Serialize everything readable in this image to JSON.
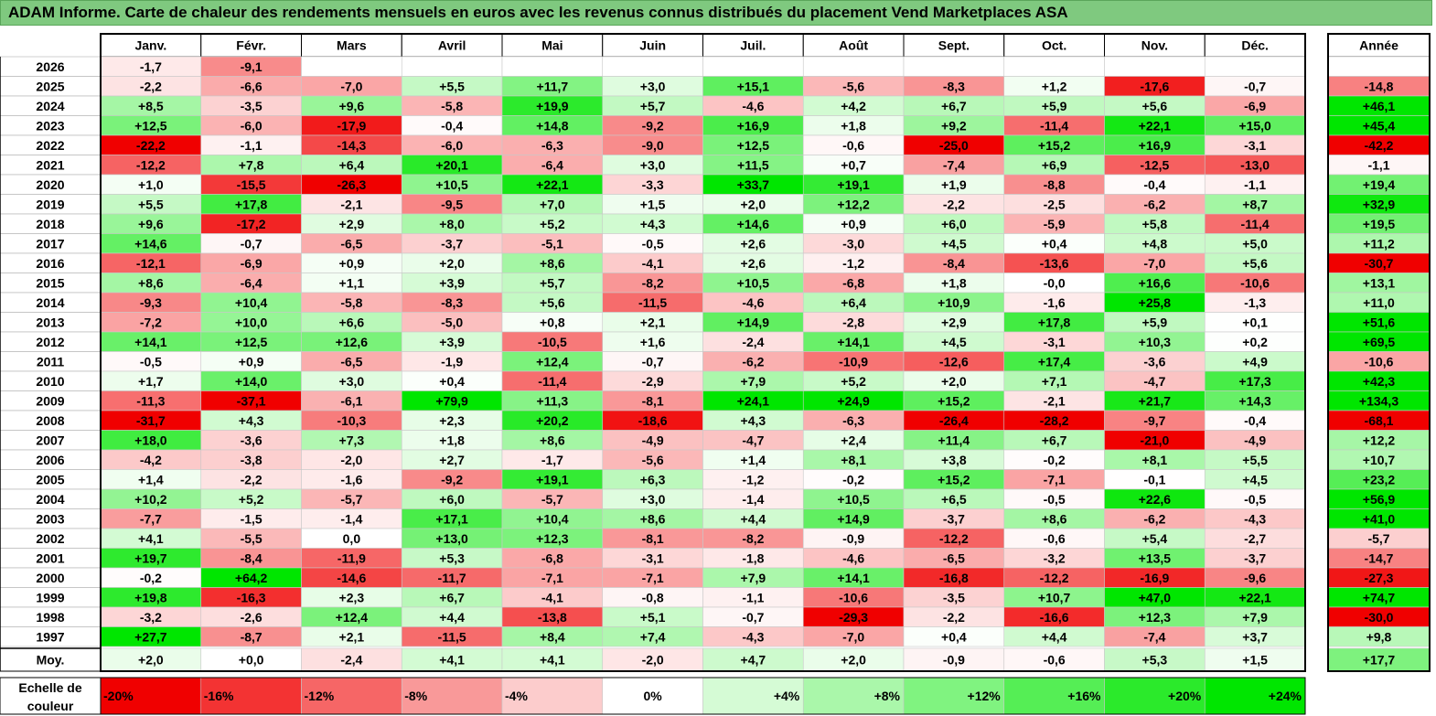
{
  "title": "ADAM Informe. Carte de chaleur des rendements mensuels en euros avec les revenus connus distribués du placement Vend Marketplaces ASA",
  "chart_data": {
    "type": "heatmap",
    "months": [
      "Janv.",
      "Févr.",
      "Mars",
      "Avril",
      "Mai",
      "Juin",
      "Juil.",
      "Août",
      "Sept.",
      "Oct.",
      "Nov.",
      "Déc."
    ],
    "year_header": "Année",
    "rows": [
      {
        "year": "2026",
        "values": [
          "-1,7",
          "-9,1",
          "",
          "",
          "",
          "",
          "",
          "",
          "",
          "",
          "",
          ""
        ],
        "annual": ""
      },
      {
        "year": "2025",
        "values": [
          "-2,2",
          "-6,6",
          "-7,0",
          "+5,5",
          "+11,7",
          "+3,0",
          "+15,1",
          "-5,6",
          "-8,3",
          "+1,2",
          "-17,6",
          "-0,7"
        ],
        "annual": "-14,8"
      },
      {
        "year": "2024",
        "values": [
          "+8,5",
          "-3,5",
          "+9,6",
          "-5,8",
          "+19,9",
          "+5,7",
          "-4,6",
          "+4,2",
          "+6,7",
          "+5,9",
          "+5,6",
          "-6,9"
        ],
        "annual": "+46,1"
      },
      {
        "year": "2023",
        "values": [
          "+12,5",
          "-6,0",
          "-17,9",
          "-0,4",
          "+14,8",
          "-9,2",
          "+16,9",
          "+1,8",
          "+9,2",
          "-11,4",
          "+22,1",
          "+15,0"
        ],
        "annual": "+45,4"
      },
      {
        "year": "2022",
        "values": [
          "-22,2",
          "-1,1",
          "-14,3",
          "-6,0",
          "-6,3",
          "-9,0",
          "+12,5",
          "-0,6",
          "-25,0",
          "+15,2",
          "+16,9",
          "-3,1"
        ],
        "annual": "-42,2"
      },
      {
        "year": "2021",
        "values": [
          "-12,2",
          "+7,8",
          "+6,4",
          "+20,1",
          "-6,4",
          "+3,0",
          "+11,5",
          "+0,7",
          "-7,4",
          "+6,9",
          "-12,5",
          "-13,0"
        ],
        "annual": "-1,1"
      },
      {
        "year": "2020",
        "values": [
          "+1,0",
          "-15,5",
          "-26,3",
          "+10,5",
          "+22,1",
          "-3,3",
          "+33,7",
          "+19,1",
          "+1,9",
          "-8,8",
          "-0,4",
          "-1,1"
        ],
        "annual": "+19,4"
      },
      {
        "year": "2019",
        "values": [
          "+5,5",
          "+17,8",
          "-2,1",
          "-9,5",
          "+7,0",
          "+1,5",
          "+2,0",
          "+12,2",
          "-2,2",
          "-2,5",
          "-6,2",
          "+8,7"
        ],
        "annual": "+32,9"
      },
      {
        "year": "2018",
        "values": [
          "+9,6",
          "-17,2",
          "+2,9",
          "+8,0",
          "+5,2",
          "+4,3",
          "+14,6",
          "+0,9",
          "+6,0",
          "-5,9",
          "+5,8",
          "-11,4"
        ],
        "annual": "+19,5"
      },
      {
        "year": "2017",
        "values": [
          "+14,6",
          "-0,7",
          "-6,5",
          "-3,7",
          "-5,1",
          "-0,5",
          "+2,6",
          "-3,0",
          "+4,5",
          "+0,4",
          "+4,8",
          "+5,0"
        ],
        "annual": "+11,2"
      },
      {
        "year": "2016",
        "values": [
          "-12,1",
          "-6,9",
          "+0,9",
          "+2,0",
          "+8,6",
          "-4,1",
          "+2,6",
          "-1,2",
          "-8,4",
          "-13,6",
          "-7,0",
          "+5,6"
        ],
        "annual": "-30,7"
      },
      {
        "year": "2015",
        "values": [
          "+8,6",
          "-6,4",
          "+1,1",
          "+3,9",
          "+5,7",
          "-8,2",
          "+10,5",
          "-6,8",
          "+1,8",
          "-0,0",
          "+16,6",
          "-10,6"
        ],
        "annual": "+13,1"
      },
      {
        "year": "2014",
        "values": [
          "-9,3",
          "+10,4",
          "-5,8",
          "-8,3",
          "+5,6",
          "-11,5",
          "-4,6",
          "+6,4",
          "+10,9",
          "-1,6",
          "+25,8",
          "-1,3"
        ],
        "annual": "+11,0"
      },
      {
        "year": "2013",
        "values": [
          "-7,2",
          "+10,0",
          "+6,6",
          "-5,0",
          "+0,8",
          "+2,1",
          "+14,9",
          "-2,8",
          "+2,9",
          "+17,8",
          "+5,9",
          "+0,1"
        ],
        "annual": "+51,6"
      },
      {
        "year": "2012",
        "values": [
          "+14,1",
          "+12,5",
          "+12,6",
          "+3,9",
          "-10,5",
          "+1,6",
          "-2,4",
          "+14,1",
          "+4,5",
          "-3,1",
          "+10,3",
          "+0,2"
        ],
        "annual": "+69,5"
      },
      {
        "year": "2011",
        "values": [
          "-0,5",
          "+0,9",
          "-6,5",
          "-1,9",
          "+12,4",
          "-0,7",
          "-6,2",
          "-10,9",
          "-12,6",
          "+17,4",
          "-3,6",
          "+4,9"
        ],
        "annual": "-10,6"
      },
      {
        "year": "2010",
        "values": [
          "+1,7",
          "+14,0",
          "+3,0",
          "+0,4",
          "-11,4",
          "-2,9",
          "+7,9",
          "+5,2",
          "+2,0",
          "+7,1",
          "-4,7",
          "+17,3"
        ],
        "annual": "+42,3"
      },
      {
        "year": "2009",
        "values": [
          "-11,3",
          "-37,1",
          "-6,1",
          "+79,9",
          "+11,3",
          "-8,1",
          "+24,1",
          "+24,9",
          "+15,2",
          "-2,1",
          "+21,7",
          "+14,3"
        ],
        "annual": "+134,3"
      },
      {
        "year": "2008",
        "values": [
          "-31,7",
          "+4,3",
          "-10,3",
          "+2,3",
          "+20,2",
          "-18,6",
          "+4,3",
          "-6,3",
          "-26,4",
          "-28,2",
          "-9,7",
          "-0,4"
        ],
        "annual": "-68,1"
      },
      {
        "year": "2007",
        "values": [
          "+18,0",
          "-3,6",
          "+7,3",
          "+1,8",
          "+8,6",
          "-4,9",
          "-4,7",
          "+2,4",
          "+11,4",
          "+6,7",
          "-21,0",
          "-4,9"
        ],
        "annual": "+12,2"
      },
      {
        "year": "2006",
        "values": [
          "-4,2",
          "-3,8",
          "-2,0",
          "+2,7",
          "-1,7",
          "-5,6",
          "+1,4",
          "+8,1",
          "+3,8",
          "-0,2",
          "+8,1",
          "+5,5"
        ],
        "annual": "+10,7"
      },
      {
        "year": "2005",
        "values": [
          "+1,4",
          "-2,2",
          "-1,6",
          "-9,2",
          "+19,1",
          "+6,3",
          "-1,2",
          "-0,2",
          "+15,2",
          "-7,1",
          "-0,1",
          "+4,5"
        ],
        "annual": "+23,2"
      },
      {
        "year": "2004",
        "values": [
          "+10,2",
          "+5,2",
          "-5,7",
          "+6,0",
          "-5,7",
          "+3,0",
          "-1,4",
          "+10,5",
          "+6,5",
          "-0,5",
          "+22,6",
          "-0,5"
        ],
        "annual": "+56,9"
      },
      {
        "year": "2003",
        "values": [
          "-7,7",
          "-1,5",
          "-1,4",
          "+17,1",
          "+10,4",
          "+8,6",
          "+4,4",
          "+14,9",
          "-3,7",
          "+8,6",
          "-6,2",
          "-4,3"
        ],
        "annual": "+41,0"
      },
      {
        "year": "2002",
        "values": [
          "+4,1",
          "-5,5",
          "0,0",
          "+13,0",
          "+12,3",
          "-8,1",
          "-8,2",
          "-0,9",
          "-12,2",
          "-0,6",
          "+5,4",
          "-2,7"
        ],
        "annual": "-5,7"
      },
      {
        "year": "2001",
        "values": [
          "+19,7",
          "-8,4",
          "-11,9",
          "+5,3",
          "-6,8",
          "-3,1",
          "-1,8",
          "-4,6",
          "-6,5",
          "-3,2",
          "+13,5",
          "-3,7"
        ],
        "annual": "-14,7"
      },
      {
        "year": "2000",
        "values": [
          "-0,2",
          "+64,2",
          "-14,6",
          "-11,7",
          "-7,1",
          "-7,1",
          "+7,9",
          "+14,1",
          "-16,8",
          "-12,2",
          "-16,9",
          "-9,6"
        ],
        "annual": "-27,3"
      },
      {
        "year": "1999",
        "values": [
          "+19,8",
          "-16,3",
          "+2,3",
          "+6,7",
          "-4,1",
          "-0,8",
          "-1,1",
          "-10,6",
          "-3,5",
          "+10,7",
          "+47,0",
          "+22,1"
        ],
        "annual": "+74,7"
      },
      {
        "year": "1998",
        "values": [
          "-3,2",
          "-2,6",
          "+12,4",
          "+4,4",
          "-13,8",
          "+5,1",
          "-0,7",
          "-29,3",
          "-2,2",
          "-16,6",
          "+12,3",
          "+7,9"
        ],
        "annual": "-30,0"
      },
      {
        "year": "1997",
        "values": [
          "+27,7",
          "-8,7",
          "+2,1",
          "-11,5",
          "+8,4",
          "+7,4",
          "-4,3",
          "-7,0",
          "+0,4",
          "+4,4",
          "-7,4",
          "+3,7"
        ],
        "annual": "+9,8"
      }
    ],
    "average": {
      "label": "Moy.",
      "values": [
        "+2,0",
        "+0,0",
        "-2,4",
        "+4,1",
        "+4,1",
        "-2,0",
        "+4,7",
        "+2,0",
        "-0,9",
        "-0,6",
        "+5,3",
        "+1,5"
      ],
      "annual": "+17,7"
    },
    "color_scale": {
      "label_lines": [
        "Echelle de",
        "couleur"
      ],
      "stops": [
        "-20%",
        "-16%",
        "-12%",
        "-8%",
        "-4%",
        "0%",
        "+4%",
        "+8%",
        "+12%",
        "+16%",
        "+20%",
        "+24%"
      ]
    }
  }
}
